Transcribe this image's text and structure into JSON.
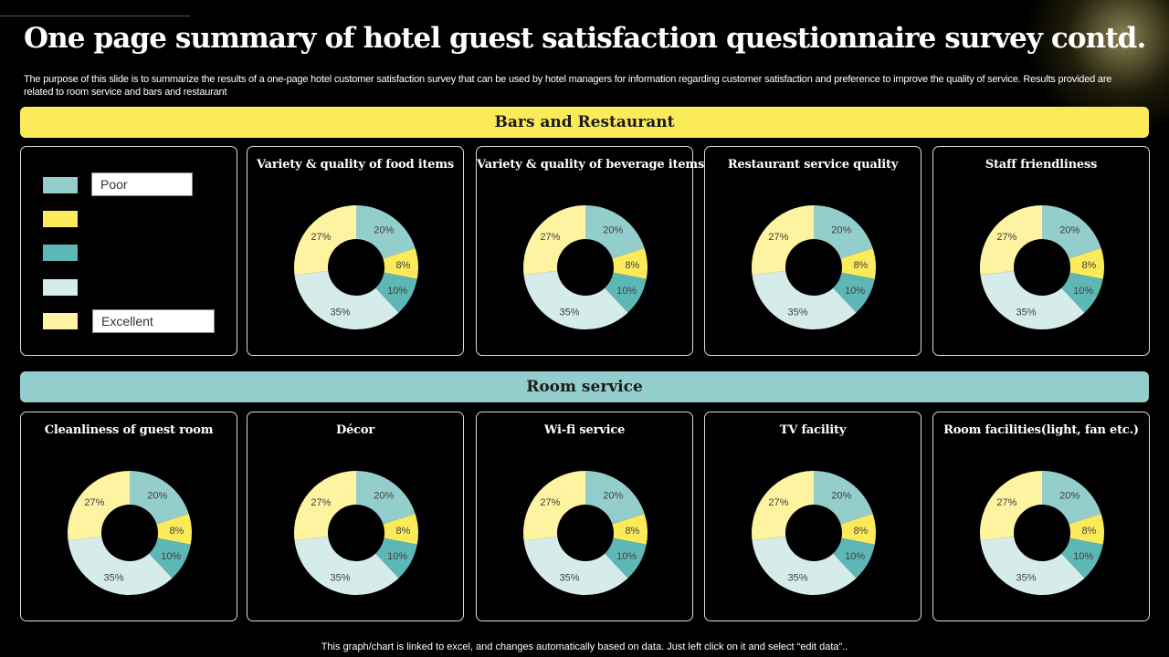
{
  "page": {
    "title": "One page summary of hotel guest satisfaction questionnaire survey contd.",
    "subtitle": "The purpose of this slide is to summarize the results of a one-page hotel customer satisfaction survey that can be used by hotel managers for information regarding customer satisfaction and preference to improve the quality of service. Results provided are related to room service and bars and restaurant",
    "footer": "This graph/chart is linked to excel,  and changes automatically based on data. Just left click on it and select “edit data”.."
  },
  "sections": {
    "bars": "Bars and Restaurant",
    "room": "Room service"
  },
  "legend": {
    "poor": "Poor",
    "excellent": "Excellent",
    "colors": [
      "#94CECC",
      "#FBEB5B",
      "#5DB7B5",
      "#D6ECEB",
      "#FDF3A0"
    ]
  },
  "slice_colors": [
    "#94CECC",
    "#FBEB5B",
    "#5DB7B5",
    "#D6ECEB",
    "#FDF3A0"
  ],
  "chart_data": [
    {
      "type": "pie",
      "title": "Variety  & quality  of food items",
      "categories": [
        "",
        "",
        "",
        "",
        ""
      ],
      "values": [
        20,
        8,
        10,
        35,
        27
      ],
      "labels": [
        "20%",
        "8%",
        "10%",
        "35%",
        "27%"
      ]
    },
    {
      "type": "pie",
      "title": "Variety  & quality  of beverage  items",
      "categories": [
        "",
        "",
        "",
        "",
        ""
      ],
      "values": [
        20,
        8,
        10,
        35,
        27
      ],
      "labels": [
        "20%",
        "8%",
        "10%",
        "35%",
        "27%"
      ]
    },
    {
      "type": "pie",
      "title": "Restaurant  service quality",
      "categories": [
        "",
        "",
        "",
        "",
        ""
      ],
      "values": [
        20,
        8,
        10,
        35,
        27
      ],
      "labels": [
        "20%",
        "8%",
        "10%",
        "35%",
        "27%"
      ]
    },
    {
      "type": "pie",
      "title": "Staff friendliness",
      "categories": [
        "",
        "",
        "",
        "",
        ""
      ],
      "values": [
        20,
        8,
        10,
        35,
        27
      ],
      "labels": [
        "20%",
        "8%",
        "10%",
        "35%",
        "27%"
      ]
    },
    {
      "type": "pie",
      "title": "Cleanliness  of guest room",
      "categories": [
        "",
        "",
        "",
        "",
        ""
      ],
      "values": [
        20,
        8,
        10,
        35,
        27
      ],
      "labels": [
        "20%",
        "8%",
        "10%",
        "35%",
        "27%"
      ]
    },
    {
      "type": "pie",
      "title": "Décor",
      "categories": [
        "",
        "",
        "",
        "",
        ""
      ],
      "values": [
        20,
        8,
        10,
        35,
        27
      ],
      "labels": [
        "20%",
        "8%",
        "10%",
        "35%",
        "27%"
      ]
    },
    {
      "type": "pie",
      "title": "Wi-fi service",
      "categories": [
        "",
        "",
        "",
        "",
        ""
      ],
      "values": [
        20,
        8,
        10,
        35,
        27
      ],
      "labels": [
        "20%",
        "8%",
        "10%",
        "35%",
        "27%"
      ]
    },
    {
      "type": "pie",
      "title": "TV facility",
      "categories": [
        "",
        "",
        "",
        "",
        ""
      ],
      "values": [
        20,
        8,
        10,
        35,
        27
      ],
      "labels": [
        "20%",
        "8%",
        "10%",
        "35%",
        "27%"
      ]
    },
    {
      "type": "pie",
      "title": "Room facilities(light,  fan etc.)",
      "categories": [
        "",
        "",
        "",
        "",
        ""
      ],
      "values": [
        20,
        8,
        10,
        35,
        27
      ],
      "labels": [
        "20%",
        "8%",
        "10%",
        "35%",
        "27%"
      ]
    }
  ]
}
